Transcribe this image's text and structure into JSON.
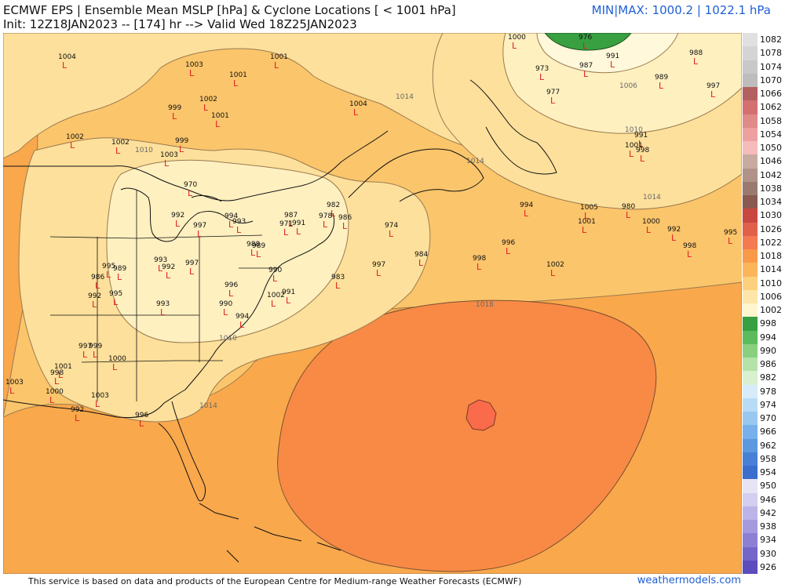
{
  "header": {
    "title": "ECMWF EPS | Ensemble Mean MSLP [hPa] & Cyclone Locations [ < 1001 hPa]",
    "subtitle": "Init: 12Z18JAN2023 -- [174] hr --> Valid Wed 18Z25JAN2023",
    "minmax": "MIN|MAX: 1000.2 | 1022.1 hPa"
  },
  "footer": {
    "attribution": "This service is based on data and products of the European Centre for Medium-range Weather Forecasts (ECMWF)",
    "brand": "weathermodels.com"
  },
  "colors": {
    "low_1006": "#fff0c0",
    "p1010": "#fde09b",
    "p1014": "#fbc56b",
    "p1018": "#f9a84c",
    "p1022": "#f88a45",
    "high": "#f96b4a",
    "cyclone_marker": "#e02020",
    "land_lines": "#111111"
  },
  "isobar_labels": [
    {
      "text": "1014",
      "pos": "Gulf of Maine"
    },
    {
      "text": "1014",
      "pos": "Nova Scotia"
    },
    {
      "text": "1006",
      "pos": "North Atlantic"
    },
    {
      "text": "1010",
      "pos": "North Atlantic"
    },
    {
      "text": "1014",
      "pos": "North Atlantic"
    },
    {
      "text": "1010",
      "pos": "Great Lakes"
    },
    {
      "text": "1010",
      "pos": "Carolinas"
    },
    {
      "text": "1014",
      "pos": "Georgia"
    },
    {
      "text": "1018",
      "pos": "Central Atlantic"
    }
  ],
  "cyclones": [
    {
      "value": "1004"
    },
    {
      "value": "1003"
    },
    {
      "value": "1001"
    },
    {
      "value": "1001"
    },
    {
      "value": "1000"
    },
    {
      "value": "976"
    },
    {
      "value": "990"
    },
    {
      "value": "988"
    },
    {
      "value": "999"
    },
    {
      "value": "1002"
    },
    {
      "value": "1001"
    },
    {
      "value": "1004"
    },
    {
      "value": "973"
    },
    {
      "value": "987"
    },
    {
      "value": "991"
    },
    {
      "value": "989"
    },
    {
      "value": "977"
    },
    {
      "value": "997"
    },
    {
      "value": "1002"
    },
    {
      "value": "1002"
    },
    {
      "value": "999"
    },
    {
      "value": "1003"
    },
    {
      "value": "991"
    },
    {
      "value": "1001"
    },
    {
      "value": "998"
    },
    {
      "value": "970"
    },
    {
      "value": "992"
    },
    {
      "value": "997"
    },
    {
      "value": "994"
    },
    {
      "value": "993"
    },
    {
      "value": "991"
    },
    {
      "value": "987"
    },
    {
      "value": "982"
    },
    {
      "value": "971"
    },
    {
      "value": "978"
    },
    {
      "value": "986"
    },
    {
      "value": "974"
    },
    {
      "value": "994"
    },
    {
      "value": "1005"
    },
    {
      "value": "980"
    },
    {
      "value": "1001"
    },
    {
      "value": "1000"
    },
    {
      "value": "992"
    },
    {
      "value": "995"
    },
    {
      "value": "998"
    },
    {
      "value": "996"
    },
    {
      "value": "984"
    },
    {
      "value": "995"
    },
    {
      "value": "989"
    },
    {
      "value": "986"
    },
    {
      "value": "993"
    },
    {
      "value": "997"
    },
    {
      "value": "1002"
    },
    {
      "value": "990"
    },
    {
      "value": "983"
    },
    {
      "value": "998"
    },
    {
      "value": "992"
    },
    {
      "value": "997"
    },
    {
      "value": "988"
    },
    {
      "value": "989"
    },
    {
      "value": "996"
    },
    {
      "value": "990"
    },
    {
      "value": "994"
    },
    {
      "value": "1002"
    },
    {
      "value": "991"
    },
    {
      "value": "992"
    },
    {
      "value": "995"
    },
    {
      "value": "993"
    },
    {
      "value": "1001"
    },
    {
      "value": "997"
    },
    {
      "value": "999"
    },
    {
      "value": "1000"
    },
    {
      "value": "998"
    },
    {
      "value": "1003"
    },
    {
      "value": "1000"
    },
    {
      "value": "1003"
    },
    {
      "value": "992"
    },
    {
      "value": "996"
    }
  ],
  "legend": [
    {
      "label": "1082",
      "color": "#e0e0e0"
    },
    {
      "label": "1078",
      "color": "#d4d4d4"
    },
    {
      "label": "1074",
      "color": "#c8c8c8"
    },
    {
      "label": "1070",
      "color": "#bdbdbd"
    },
    {
      "label": "1066",
      "color": "#b56060"
    },
    {
      "label": "1062",
      "color": "#d47070"
    },
    {
      "label": "1058",
      "color": "#e08a8a"
    },
    {
      "label": "1054",
      "color": "#eea0a0"
    },
    {
      "label": "1050",
      "color": "#f6bcbc"
    },
    {
      "label": "1046",
      "color": "#c9aaa0"
    },
    {
      "label": "1042",
      "color": "#b09288"
    },
    {
      "label": "1038",
      "color": "#9a7a70"
    },
    {
      "label": "1034",
      "color": "#8a5a50"
    },
    {
      "label": "1030",
      "color": "#c84840"
    },
    {
      "label": "1026",
      "color": "#e0604a"
    },
    {
      "label": "1022",
      "color": "#f57a50"
    },
    {
      "label": "1018",
      "color": "#f89a48"
    },
    {
      "label": "1014",
      "color": "#fbb65a"
    },
    {
      "label": "1010",
      "color": "#fdd07e"
    },
    {
      "label": "1006",
      "color": "#fee6a8"
    },
    {
      "label": "1002",
      "color": "#fff5cf"
    },
    {
      "label": "998",
      "color": "#38a040"
    },
    {
      "label": "994",
      "color": "#5cbc5c"
    },
    {
      "label": "990",
      "color": "#88d080"
    },
    {
      "label": "986",
      "color": "#b4e2a8"
    },
    {
      "label": "982",
      "color": "#d8f0d0"
    },
    {
      "label": "978",
      "color": "#d6ecfa"
    },
    {
      "label": "974",
      "color": "#b8dcf5"
    },
    {
      "label": "970",
      "color": "#98c8f0"
    },
    {
      "label": "966",
      "color": "#78b0ea"
    },
    {
      "label": "962",
      "color": "#5c98e0"
    },
    {
      "label": "958",
      "color": "#4880d6"
    },
    {
      "label": "954",
      "color": "#3c6ecc"
    },
    {
      "label": "950",
      "color": "#e8e4f4"
    },
    {
      "label": "946",
      "color": "#d4cef0"
    },
    {
      "label": "942",
      "color": "#bcb4e8"
    },
    {
      "label": "938",
      "color": "#a49ade"
    },
    {
      "label": "934",
      "color": "#8c80d4"
    },
    {
      "label": "930",
      "color": "#7466c8"
    },
    {
      "label": "926",
      "color": "#5c4cbc"
    }
  ]
}
